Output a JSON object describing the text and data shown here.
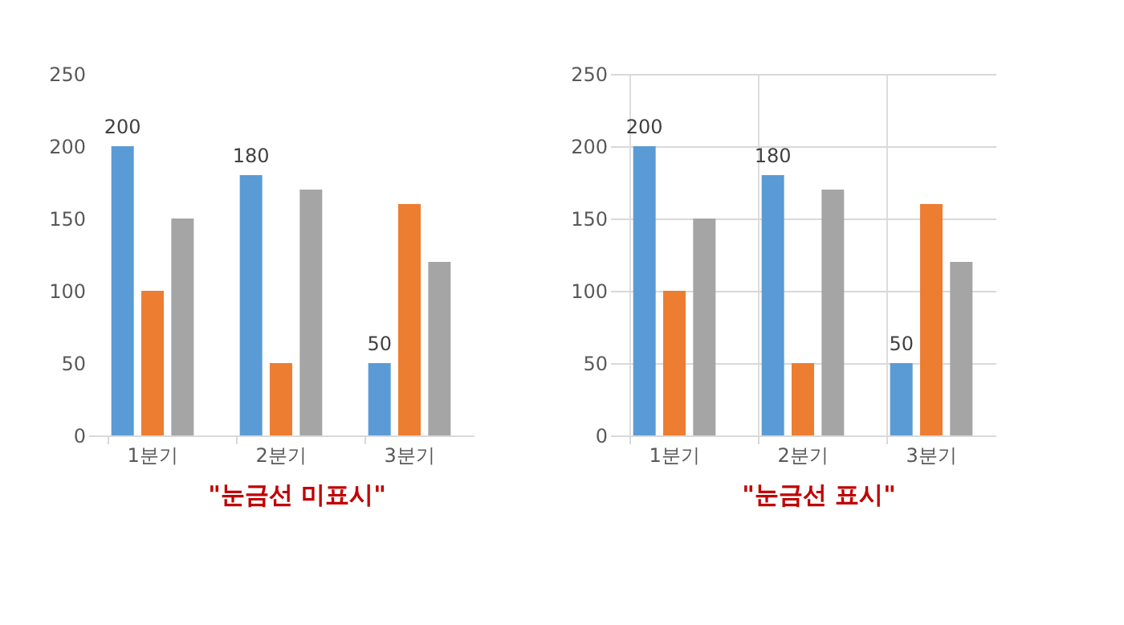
{
  "chart_data": [
    {
      "type": "bar",
      "categories": [
        "1분기",
        "2분기",
        "3분기"
      ],
      "series": [
        {
          "color": "#5b9bd5",
          "values": [
            200,
            180,
            50
          ],
          "value_labels": [
            "200",
            "180",
            "50"
          ]
        },
        {
          "color": "#ed7d31",
          "values": [
            100,
            50,
            160
          ]
        },
        {
          "color": "#a5a5a5",
          "values": [
            150,
            170,
            120
          ]
        }
      ],
      "ylim": [
        0,
        250
      ],
      "yticks": [
        0,
        50,
        100,
        150,
        200,
        250
      ],
      "grid": false,
      "annotations": [
        "\"눈금선 미표시\""
      ]
    },
    {
      "type": "bar",
      "categories": [
        "1분기",
        "2분기",
        "3분기"
      ],
      "series": [
        {
          "color": "#5b9bd5",
          "values": [
            200,
            180,
            50
          ],
          "value_labels": [
            "200",
            "180",
            "50"
          ]
        },
        {
          "color": "#ed7d31",
          "values": [
            100,
            50,
            160
          ]
        },
        {
          "color": "#a5a5a5",
          "values": [
            150,
            170,
            120
          ]
        }
      ],
      "ylim": [
        0,
        250
      ],
      "yticks": [
        0,
        50,
        100,
        150,
        200,
        250
      ],
      "grid": true,
      "annotations": [
        "\"눈금선 표시\""
      ]
    }
  ]
}
